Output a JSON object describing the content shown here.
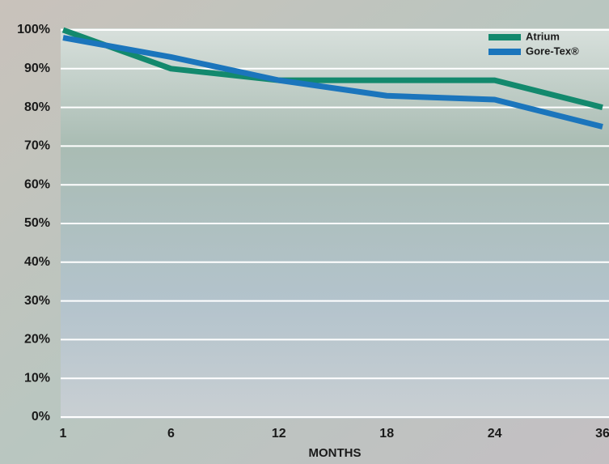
{
  "chart_data": {
    "type": "line",
    "x_label": "MONTHS",
    "categories": [
      "1",
      "6",
      "12",
      "18",
      "24",
      "36"
    ],
    "series": [
      {
        "name": "Atrium",
        "color": "#13896d",
        "values": [
          100,
          90,
          87,
          87,
          87,
          80
        ]
      },
      {
        "name": "Gore-Tex®",
        "color": "#1b75bc",
        "values": [
          98,
          93,
          87,
          83,
          82,
          75
        ]
      }
    ],
    "ylim": [
      0,
      100
    ],
    "yticks": [
      {
        "value": 0,
        "label": "0%"
      },
      {
        "value": 10,
        "label": "10%"
      },
      {
        "value": 20,
        "label": "20%"
      },
      {
        "value": 30,
        "label": "30%"
      },
      {
        "value": 40,
        "label": "40%"
      },
      {
        "value": 50,
        "label": "50%"
      },
      {
        "value": 60,
        "label": "60%"
      },
      {
        "value": 70,
        "label": "70%"
      },
      {
        "value": 80,
        "label": "80%"
      },
      {
        "value": 90,
        "label": "90%"
      },
      {
        "value": 100,
        "label": "100%"
      }
    ],
    "grid": true,
    "legend": "top-right"
  }
}
